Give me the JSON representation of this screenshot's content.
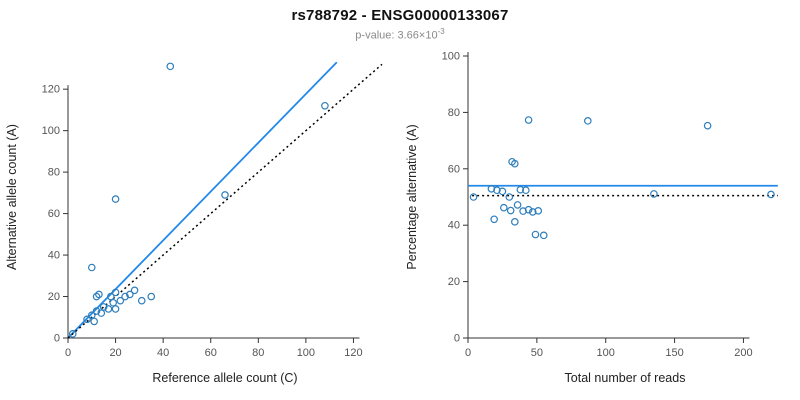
{
  "header": {
    "title": "rs788792 - ENSG00000133067",
    "pvalue_prefix": "p-value: ",
    "pvalue_mantissa": "3.66×10",
    "pvalue_exponent": "-3"
  },
  "colors": {
    "points": "#2e7ebc",
    "trend_line": "#2289ea",
    "dotted_line": "#000000",
    "axis": "#333333",
    "tick_text": "#555555",
    "label_text": "#222222",
    "subtitle_text": "#8a8a8a",
    "title_text": "#111111",
    "background": "#ffffff"
  },
  "chart_data": [
    {
      "type": "scatter",
      "title": "",
      "xlabel": "Reference allele count (C)",
      "ylabel": "Alternative allele count (A)",
      "xlim": [
        0,
        132
      ],
      "ylim": [
        0,
        136
      ],
      "xticks": [
        0,
        20,
        40,
        60,
        80,
        100,
        120
      ],
      "yticks": [
        0,
        20,
        40,
        60,
        80,
        100,
        120
      ],
      "grid": false,
      "legend": "none",
      "points": [
        [
          2,
          2
        ],
        [
          8,
          9
        ],
        [
          10,
          11
        ],
        [
          11,
          8
        ],
        [
          12,
          13
        ],
        [
          13,
          21
        ],
        [
          14,
          12
        ],
        [
          15,
          15
        ],
        [
          12,
          20
        ],
        [
          17,
          14
        ],
        [
          18,
          20
        ],
        [
          19,
          17
        ],
        [
          20,
          22
        ],
        [
          20,
          14
        ],
        [
          22,
          18
        ],
        [
          24,
          20
        ],
        [
          26,
          21
        ],
        [
          28,
          23
        ],
        [
          31,
          18
        ],
        [
          35,
          20
        ],
        [
          10,
          34
        ],
        [
          20,
          67
        ],
        [
          43,
          131
        ],
        [
          108,
          112
        ],
        [
          66,
          69
        ]
      ],
      "lines": [
        {
          "name": "regression-line",
          "style": "solid",
          "color": "blue",
          "x1": 0,
          "y1": 0,
          "x2": 113,
          "y2": 133
        },
        {
          "name": "identity-line",
          "style": "dotted",
          "color": "black",
          "x1": 0,
          "y1": 0,
          "x2": 132,
          "y2": 132
        }
      ]
    },
    {
      "type": "scatter",
      "title": "",
      "xlabel": "Total number of reads",
      "ylabel": "Percentage alternative (A)",
      "xlim": [
        0,
        228
      ],
      "ylim": [
        0,
        100
      ],
      "xticks": [
        0,
        50,
        100,
        150,
        200
      ],
      "yticks": [
        0,
        20,
        40,
        60,
        80,
        100
      ],
      "grid": false,
      "legend": "none",
      "points": [
        [
          4,
          50
        ],
        [
          17,
          52.9
        ],
        [
          21,
          52.4
        ],
        [
          19,
          42.1
        ],
        [
          25,
          52
        ],
        [
          34,
          61.8
        ],
        [
          26,
          46.2
        ],
        [
          30,
          50
        ],
        [
          32,
          62.5
        ],
        [
          31,
          45.2
        ],
        [
          38,
          52.6
        ],
        [
          36,
          47.2
        ],
        [
          42,
          52.4
        ],
        [
          34,
          41.2
        ],
        [
          40,
          45
        ],
        [
          44,
          45.5
        ],
        [
          47,
          44.7
        ],
        [
          51,
          45.1
        ],
        [
          49,
          36.7
        ],
        [
          55,
          36.4
        ],
        [
          44,
          77.3
        ],
        [
          87,
          77
        ],
        [
          174,
          75.3
        ],
        [
          220,
          50.9
        ],
        [
          135,
          51.1
        ]
      ],
      "lines": [
        {
          "name": "mean-percentage-line",
          "style": "solid",
          "color": "blue",
          "x1": 0,
          "y1": 54,
          "x2": 225,
          "y2": 54
        },
        {
          "name": "expected-percentage-line",
          "style": "dotted",
          "color": "black",
          "x1": 3,
          "y1": 50.5,
          "x2": 225,
          "y2": 50.5
        }
      ]
    }
  ]
}
